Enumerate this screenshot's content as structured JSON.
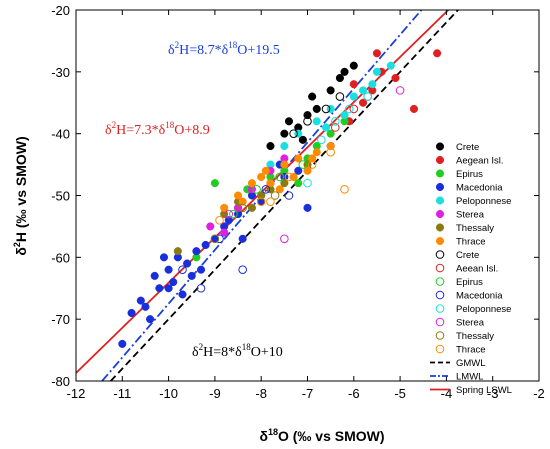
{
  "chart_data": {
    "type": "scatter",
    "xlabel": "δ18O (‰ vs SMOW)",
    "ylabel": "δ2H (‰ vs SMOW)",
    "xlim": [
      -12,
      -2
    ],
    "ylim": [
      -80,
      -20
    ],
    "xticks": [
      -12,
      -11,
      -10,
      -9,
      -8,
      -7,
      -6,
      -5,
      -4,
      -3,
      -2
    ],
    "yticks": [
      -80,
      -70,
      -60,
      -50,
      -40,
      -30,
      -20
    ],
    "xtick_labels": [
      "-12",
      "-11",
      "-10",
      "-9",
      "-8",
      "-7",
      "-6",
      "-5",
      "-4",
      "-3",
      "-2"
    ],
    "ytick_labels": [
      "-80",
      "-70",
      "-60",
      "-50",
      "-40",
      "-30",
      "-20"
    ],
    "grid": false,
    "legend_position": "right",
    "annotations": [
      {
        "text_pre": "δ",
        "sup1": "2",
        "text_mid": "H=8.7*δ",
        "sup2": "18",
        "text_post": "O+19.5",
        "color": "#1a3fd8"
      },
      {
        "text_pre": "δ",
        "sup1": "2",
        "text_mid": "H=7.3*δ",
        "sup2": "18",
        "text_post": "O+8.9",
        "color": "#e02020"
      },
      {
        "text_pre": "δ",
        "sup1": "2",
        "text_mid": "H=8*δ",
        "sup2": "18",
        "text_post": "O+10",
        "color": "#000000"
      }
    ],
    "lines": [
      {
        "name": "GMWL",
        "slope": 8,
        "intercept": 10,
        "color": "#000000",
        "dash": "dash"
      },
      {
        "name": "LMWL",
        "slope": 8.7,
        "intercept": 19.5,
        "color": "#1a3fd8",
        "dash": "dashdot"
      },
      {
        "name": "Spring LSWL",
        "slope": 7.3,
        "intercept": 8.9,
        "color": "#e02020",
        "dash": "solid"
      }
    ],
    "series": [
      {
        "name": "Crete",
        "color": "#000000",
        "filled": true,
        "points": [
          [
            -7.5,
            -40
          ],
          [
            -7.2,
            -39
          ],
          [
            -7.0,
            -37
          ],
          [
            -6.8,
            -36
          ],
          [
            -6.5,
            -33
          ],
          [
            -6.2,
            -30
          ],
          [
            -6.0,
            -29
          ],
          [
            -7.8,
            -42
          ],
          [
            -7.4,
            -38
          ],
          [
            -6.9,
            -34
          ],
          [
            -6.3,
            -31
          ],
          [
            -7.1,
            -41
          ]
        ]
      },
      {
        "name": "Aegean Isl.",
        "color": "#e02020",
        "filled": true,
        "points": [
          [
            -4.7,
            -36
          ],
          [
            -4.2,
            -27
          ],
          [
            -5.1,
            -31
          ],
          [
            -5.5,
            -27
          ],
          [
            -5.8,
            -35
          ],
          [
            -6.0,
            -32
          ],
          [
            -5.4,
            -30
          ],
          [
            -6.1,
            -38
          ],
          [
            -5.6,
            -33
          ]
        ]
      },
      {
        "name": "Epirus",
        "color": "#22cc22",
        "filled": true,
        "points": [
          [
            -9.0,
            -48
          ],
          [
            -8.5,
            -52
          ],
          [
            -8.0,
            -50
          ],
          [
            -7.5,
            -46
          ],
          [
            -7.0,
            -44
          ],
          [
            -6.5,
            -40
          ],
          [
            -6.2,
            -38
          ],
          [
            -8.8,
            -56
          ],
          [
            -7.2,
            -48
          ],
          [
            -9.4,
            -60
          ],
          [
            -6.8,
            -42
          ],
          [
            -7.8,
            -47
          ],
          [
            -8.3,
            -49
          ]
        ]
      },
      {
        "name": "Macedonia",
        "color": "#1a2fdc",
        "filled": true,
        "points": [
          [
            -11.0,
            -74
          ],
          [
            -10.5,
            -68
          ],
          [
            -10.2,
            -65
          ],
          [
            -10.0,
            -62
          ],
          [
            -9.8,
            -60
          ],
          [
            -9.5,
            -63
          ],
          [
            -9.2,
            -58
          ],
          [
            -10.6,
            -67
          ],
          [
            -10.3,
            -63
          ],
          [
            -9.9,
            -64
          ],
          [
            -9.6,
            -61
          ],
          [
            -9.0,
            -57
          ],
          [
            -8.8,
            -55
          ],
          [
            -8.5,
            -53
          ],
          [
            -8.2,
            -50
          ],
          [
            -8.0,
            -51
          ],
          [
            -7.8,
            -48
          ],
          [
            -7.5,
            -47
          ],
          [
            -7.2,
            -46
          ],
          [
            -7.0,
            -52
          ],
          [
            -10.1,
            -60
          ],
          [
            -9.7,
            -66
          ],
          [
            -9.4,
            -59
          ],
          [
            -10.4,
            -70
          ],
          [
            -10.8,
            -69
          ],
          [
            -9.3,
            -62
          ],
          [
            -8.7,
            -54
          ],
          [
            -8.4,
            -57
          ],
          [
            -7.6,
            -45
          ],
          [
            -6.5,
            -42
          ],
          [
            -10.0,
            -65
          ]
        ]
      },
      {
        "name": "Peloponnese",
        "color": "#19e0e0",
        "filled": true,
        "points": [
          [
            -7.2,
            -40
          ],
          [
            -6.8,
            -38
          ],
          [
            -6.5,
            -36
          ],
          [
            -6.0,
            -34
          ],
          [
            -5.8,
            -33
          ],
          [
            -5.5,
            -30
          ],
          [
            -5.2,
            -29
          ],
          [
            -7.5,
            -42
          ],
          [
            -7.8,
            -45
          ],
          [
            -8.0,
            -47
          ],
          [
            -6.2,
            -37
          ],
          [
            -5.6,
            -32
          ],
          [
            -6.6,
            -39
          ]
        ]
      },
      {
        "name": "Sterea",
        "color": "#e020e0",
        "filled": true,
        "points": [
          [
            -8.5,
            -52
          ],
          [
            -8.2,
            -49
          ],
          [
            -8.8,
            -56
          ],
          [
            -7.8,
            -46
          ],
          [
            -9.1,
            -55
          ],
          [
            -7.5,
            -44
          ]
        ]
      },
      {
        "name": "Thessaly",
        "color": "#8a7a10",
        "filled": true,
        "points": [
          [
            -9.8,
            -59
          ],
          [
            -8.8,
            -53
          ],
          [
            -8.5,
            -51
          ],
          [
            -8.0,
            -50
          ],
          [
            -7.5,
            -48
          ],
          [
            -7.0,
            -45
          ],
          [
            -8.2,
            -52
          ],
          [
            -7.8,
            -49
          ]
        ]
      },
      {
        "name": "Thrace",
        "color": "#ff8c00",
        "filled": true,
        "points": [
          [
            -8.5,
            -50
          ],
          [
            -8.2,
            -48
          ],
          [
            -8.0,
            -47
          ],
          [
            -7.8,
            -48
          ],
          [
            -7.5,
            -45
          ],
          [
            -7.2,
            -44
          ],
          [
            -7.0,
            -46
          ],
          [
            -6.8,
            -43
          ],
          [
            -6.5,
            -42
          ],
          [
            -8.8,
            -52
          ],
          [
            -7.6,
            -49
          ],
          [
            -7.3,
            -47
          ],
          [
            -6.9,
            -44
          ],
          [
            -8.4,
            -51
          ],
          [
            -7.9,
            -46
          ]
        ]
      },
      {
        "name": "Crete",
        "color": "#000000",
        "filled": false,
        "points": [
          [
            -7.0,
            -38
          ],
          [
            -6.6,
            -36
          ],
          [
            -6.3,
            -34
          ],
          [
            -7.3,
            -40
          ]
        ]
      },
      {
        "name": "Aeean Isl.",
        "color": "#e02020",
        "filled": false,
        "points": [
          [
            -6.0,
            -36
          ],
          [
            -5.7,
            -34
          ],
          [
            -6.4,
            -39
          ]
        ]
      },
      {
        "name": "Epirus",
        "color": "#22cc22",
        "filled": false,
        "points": [
          [
            -8.6,
            -53
          ],
          [
            -8.1,
            -49
          ],
          [
            -7.6,
            -47
          ],
          [
            -7.1,
            -45
          ]
        ]
      },
      {
        "name": "Macedonia",
        "color": "#1a2fdc",
        "filled": false,
        "points": [
          [
            -9.7,
            -62
          ],
          [
            -9.3,
            -65
          ],
          [
            -8.9,
            -57
          ],
          [
            -8.4,
            -62
          ],
          [
            -7.9,
            -49
          ],
          [
            -7.4,
            -50
          ]
        ]
      },
      {
        "name": "Peloponnese",
        "color": "#19e0e0",
        "filled": false,
        "points": [
          [
            -7.0,
            -48
          ],
          [
            -6.7,
            -41
          ],
          [
            -6.4,
            -38
          ],
          [
            -6.1,
            -36
          ],
          [
            -5.7,
            -34
          ]
        ]
      },
      {
        "name": "Sterea",
        "color": "#e020e0",
        "filled": false,
        "points": [
          [
            -7.5,
            -57
          ],
          [
            -5.0,
            -33
          ],
          [
            -8.7,
            -53
          ]
        ]
      },
      {
        "name": "Thessaly",
        "color": "#8a7a10",
        "filled": false,
        "points": [
          [
            -9.0,
            -57
          ],
          [
            -8.4,
            -52
          ],
          [
            -7.7,
            -50
          ]
        ]
      },
      {
        "name": "Thrace",
        "color": "#ff8c00",
        "filled": false,
        "points": [
          [
            -6.2,
            -49
          ],
          [
            -8.0,
            -51
          ],
          [
            -7.4,
            -47
          ],
          [
            -6.9,
            -45
          ],
          [
            -6.5,
            -43
          ],
          [
            -8.9,
            -54
          ],
          [
            -7.8,
            -51
          ]
        ]
      }
    ]
  }
}
